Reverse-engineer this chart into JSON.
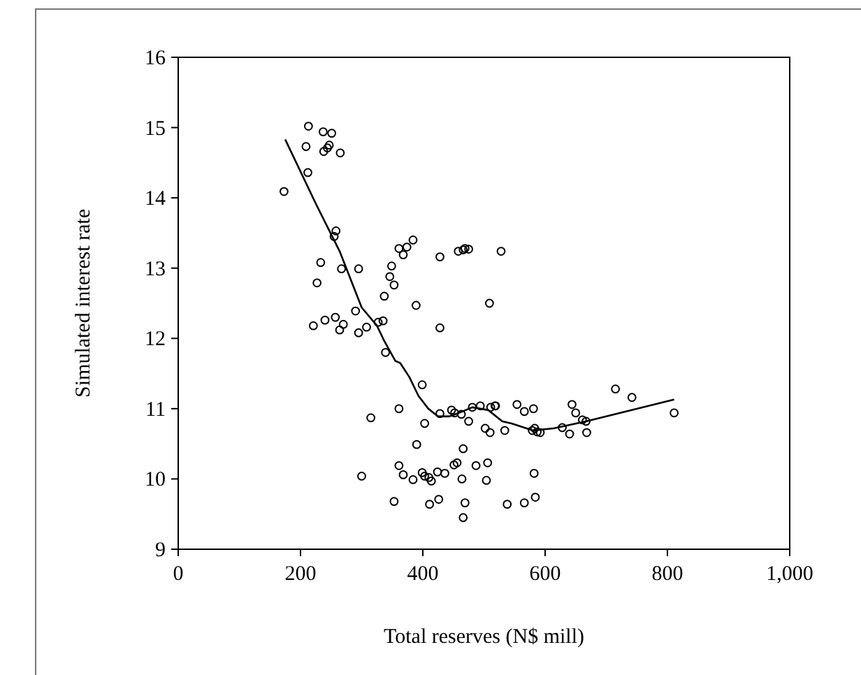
{
  "chart_data": {
    "type": "scatter",
    "xlabel": "Total reserves (N$ mill)",
    "ylabel": "Simulated interest rate",
    "xlim": [
      0,
      1000
    ],
    "ylim": [
      9,
      16
    ],
    "xticks": [
      0,
      200,
      400,
      600,
      800,
      {
        "value": 1000,
        "label": "1,000"
      }
    ],
    "yticks": [
      9,
      10,
      11,
      12,
      13,
      14,
      15,
      16
    ],
    "grid": false,
    "series": [
      {
        "color": "#000000",
        "marker": "circle",
        "x": [
          213,
          237,
          251,
          209,
          238,
          244,
          247,
          265,
          212,
          173,
          258,
          255,
          233,
          267,
          295,
          227,
          361,
          374,
          384,
          368,
          428,
          349,
          346,
          353,
          337,
          389,
          458,
          466,
          469,
          475,
          528,
          509,
          715,
          742,
          811,
          644,
          650,
          661,
          667,
          628,
          640,
          668,
          579,
          583,
          587,
          592,
          554,
          566,
          581,
          534,
          502,
          510,
          519,
          582,
          538,
          566,
          584,
          221,
          240,
          257,
          270,
          264,
          290,
          295,
          308,
          327,
          335,
          428,
          339,
          399,
          361,
          315,
          428,
          447,
          452,
          463,
          481,
          494,
          511,
          518,
          475,
          403,
          390,
          361,
          368,
          384,
          399,
          403,
          410,
          414,
          424,
          436,
          451,
          456,
          466,
          464,
          487,
          506,
          504,
          300,
          353,
          411,
          426,
          469,
          466
        ],
        "values": [
          15.02,
          14.94,
          14.92,
          14.73,
          14.66,
          14.71,
          14.75,
          14.64,
          14.36,
          14.09,
          13.53,
          13.45,
          13.08,
          12.99,
          12.99,
          12.79,
          13.28,
          13.3,
          13.4,
          13.19,
          13.16,
          13.03,
          12.88,
          12.76,
          12.6,
          12.47,
          13.24,
          13.26,
          13.28,
          13.27,
          13.24,
          12.5,
          11.28,
          11.16,
          10.94,
          11.06,
          10.94,
          10.84,
          10.82,
          10.73,
          10.64,
          10.66,
          10.69,
          10.72,
          10.67,
          10.66,
          11.06,
          10.96,
          11.0,
          10.69,
          10.72,
          10.66,
          11.04,
          10.08,
          9.64,
          9.66,
          9.74,
          12.18,
          12.26,
          12.3,
          12.2,
          12.12,
          12.39,
          12.08,
          12.16,
          12.23,
          12.25,
          12.15,
          11.8,
          11.34,
          11.0,
          10.87,
          10.93,
          10.98,
          10.94,
          10.92,
          11.02,
          11.04,
          11.02,
          11.04,
          10.82,
          10.79,
          10.49,
          10.19,
          10.06,
          9.99,
          10.09,
          10.04,
          10.02,
          9.97,
          10.1,
          10.08,
          10.2,
          10.23,
          10.43,
          10.0,
          10.19,
          10.23,
          9.98,
          10.04,
          9.68,
          9.64,
          9.71,
          9.66,
          9.45
        ]
      },
      {
        "type": "line",
        "color": "#000000",
        "marker": "none",
        "line_style": "solid",
        "x": [
          175,
          226,
          264,
          300,
          325,
          336,
          355,
          363,
          378,
          393,
          409,
          425,
          443,
          462,
          481,
          507,
          530,
          545,
          580,
          614,
          667,
          811
        ],
        "values": [
          14.83,
          13.9,
          13.24,
          12.44,
          12.18,
          11.98,
          11.68,
          11.65,
          11.45,
          11.18,
          11.0,
          10.89,
          10.89,
          10.95,
          11.02,
          10.98,
          10.82,
          10.79,
          10.69,
          10.72,
          10.82,
          11.13
        ]
      }
    ]
  }
}
